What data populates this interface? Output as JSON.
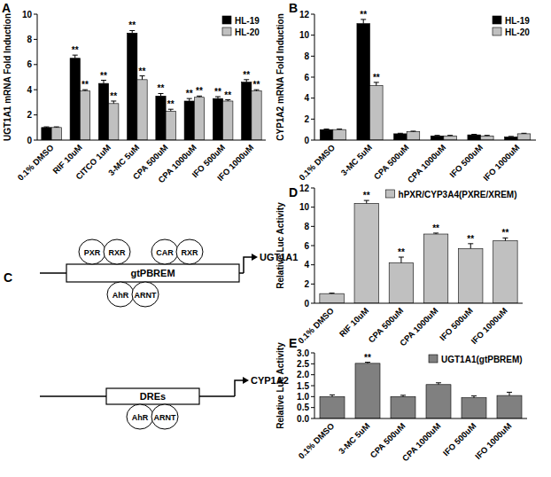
{
  "chart_data": [
    {
      "type": "bar",
      "panel": "A",
      "y_label": "UGT1A1 mRNA Fold Induction",
      "categories": [
        "0.1% DMSO",
        "RIF 10uM",
        "CITCO 1uM",
        "3-MC 5uM",
        "CPA 500uM",
        "CPA 1000uM",
        "IFO 500uM",
        "IFO 1000uM"
      ],
      "series": [
        {
          "name": "HL-19",
          "color": "#000000",
          "values": [
            1,
            6.5,
            4.5,
            8.5,
            3.5,
            3.1,
            3.3,
            4.6
          ],
          "errors": [
            0.05,
            0.25,
            0.25,
            0.2,
            0.2,
            0.2,
            0.15,
            0.2
          ],
          "significance": [
            null,
            "**",
            "**",
            "**",
            "**",
            "**",
            "**",
            "**"
          ]
        },
        {
          "name": "HL-20",
          "color": "#c0c0c0",
          "values": [
            1,
            3.9,
            2.9,
            4.8,
            2.3,
            3.4,
            3.1,
            3.9
          ],
          "errors": [
            0.05,
            0.1,
            0.2,
            0.3,
            0.15,
            0.1,
            0.1,
            0.1
          ],
          "significance": [
            null,
            "**",
            "**",
            "**",
            "**",
            "**",
            "**",
            "**"
          ]
        }
      ],
      "ylim": [
        0,
        10
      ],
      "yticks": [
        0,
        2,
        4,
        6,
        8,
        10
      ],
      "legend": "upper right"
    },
    {
      "type": "bar",
      "panel": "B",
      "y_label": "CYP1A2 mRNA Fold Induction",
      "categories": [
        "0.1% DMSO",
        "3-MC 5uM",
        "CPA 500uM",
        "CPA 1000uM",
        "IFO 500uM",
        "IFO 1000uM"
      ],
      "series": [
        {
          "name": "HL-19",
          "color": "#000000",
          "values": [
            1,
            11.1,
            0.6,
            0.4,
            0.5,
            0.3
          ],
          "errors": [
            0.05,
            0.4,
            0.05,
            0.05,
            0.05,
            0.05
          ],
          "significance": [
            null,
            "**",
            null,
            null,
            null,
            null
          ]
        },
        {
          "name": "HL-20",
          "color": "#c0c0c0",
          "values": [
            1,
            5.2,
            0.8,
            0.4,
            0.4,
            0.6
          ],
          "errors": [
            0.05,
            0.3,
            0.05,
            0.05,
            0.05,
            0.05
          ],
          "significance": [
            null,
            "**",
            null,
            null,
            null,
            null
          ]
        }
      ],
      "ylim": [
        0,
        12
      ],
      "yticks": [
        0,
        2,
        4,
        6,
        8,
        10,
        12
      ],
      "legend": "upper right"
    },
    {
      "type": "bar",
      "panel": "D",
      "y_label": "Relative Luc Activity",
      "categories": [
        "0.1% DMSO",
        "RIF 10uM",
        "CPA 500uM",
        "CPA 1000uM",
        "IFO 500uM",
        "IFO 1000uM"
      ],
      "series": [
        {
          "name": "hPXR/CYP3A4(PXRE/XREM)",
          "color": "#c0c0c0",
          "values": [
            1,
            10.4,
            4.2,
            7.2,
            5.7,
            6.5
          ],
          "errors": [
            0.05,
            0.3,
            0.6,
            0.1,
            0.5,
            0.3
          ],
          "significance": [
            null,
            "**",
            "**",
            "**",
            "**",
            "**"
          ]
        }
      ],
      "ylim": [
        0,
        12
      ],
      "yticks": [
        0,
        2,
        4,
        6,
        8,
        10,
        12
      ],
      "legend": "upper right"
    },
    {
      "type": "bar",
      "panel": "E",
      "y_label": "Relative Luc Activity",
      "categories": [
        "0.1% DMSO",
        "3-MC 5uM",
        "CPA 500uM",
        "CPA 1000uM",
        "IFO 500uM",
        "IFO 1000uM"
      ],
      "series": [
        {
          "name": "UGT1A1(gtPBREM)",
          "color": "#808080",
          "values": [
            1,
            2.52,
            1.0,
            1.55,
            0.95,
            1.05
          ],
          "errors": [
            0.08,
            0.05,
            0.06,
            0.08,
            0.08,
            0.15
          ],
          "significance": [
            null,
            "**",
            null,
            null,
            null,
            null
          ]
        }
      ],
      "ylim": [
        0,
        3
      ],
      "yticks": [
        {
          "value": 0,
          "label": "0.0"
        },
        {
          "value": 0.5,
          "label": "0.5"
        },
        {
          "value": 1,
          "label": "1.0"
        },
        {
          "value": 1.5,
          "label": "1.5"
        },
        {
          "value": 2,
          "label": "2.0"
        },
        {
          "value": 2.5,
          "label": "2.5"
        },
        {
          "value": 3,
          "label": "3.0"
        }
      ],
      "legend": "upper right"
    }
  ],
  "diagram": {
    "panel": "C",
    "genes": [
      {
        "name": "UGT1A1",
        "element": "gtPBREM",
        "above": [
          [
            "PXR",
            "RXR"
          ],
          [
            "CAR",
            "RXR"
          ]
        ],
        "below": [
          [
            "AhR",
            "ARNT"
          ]
        ]
      },
      {
        "name": "CYP1A2",
        "element": "DREs",
        "above": [],
        "below": [
          [
            "AhR",
            "ARNT"
          ]
        ]
      }
    ]
  }
}
